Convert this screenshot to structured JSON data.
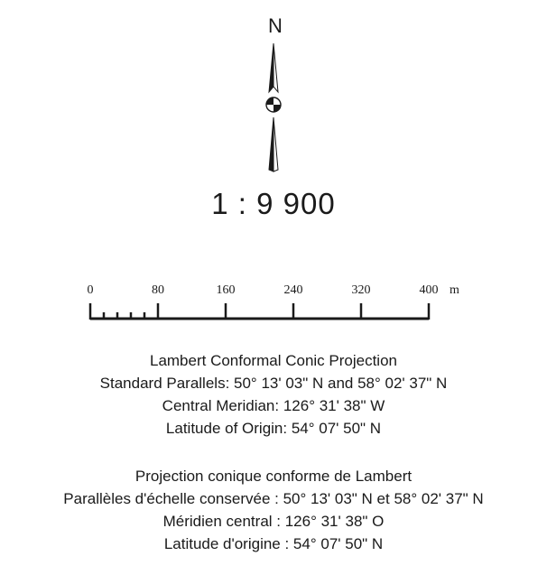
{
  "north_arrow": {
    "letter": "N",
    "icon": "north-arrow-icon"
  },
  "scale": {
    "ratio_text": "1 :  9 900"
  },
  "scale_bar": {
    "unit": "m",
    "labels": [
      "0",
      "80",
      "160",
      "240",
      "320",
      "400"
    ]
  },
  "projection_en": {
    "title": "Lambert Conformal Conic Projection",
    "standard_parallels": "Standard Parallels: 50° 13' 03\" N and 58° 02' 37\" N",
    "central_meridian": "Central Meridian: 126° 31' 38\" W",
    "latitude_of_origin": "Latitude of Origin: 54° 07' 50\" N"
  },
  "projection_fr": {
    "title": "Projection conique conforme de Lambert",
    "standard_parallels": "Parallèles d'échelle conservée : 50° 13' 03\" N et 58° 02' 37\" N",
    "central_meridian": "Méridien central : 126° 31' 38\" O",
    "latitude_of_origin": "Latitude d'origine : 54° 07' 50\" N"
  }
}
